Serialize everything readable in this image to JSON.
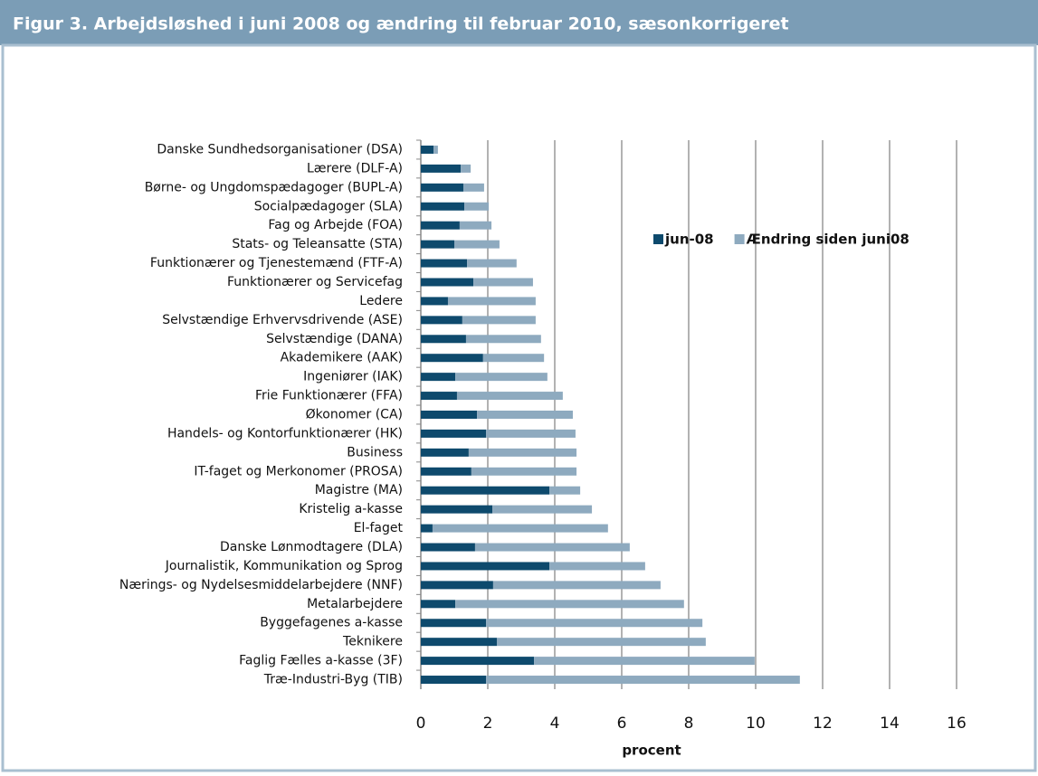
{
  "chart_data": {
    "type": "stacked-barh",
    "title": "Figur 3. Arbejdsløshed i juni 2008 og ændring til februar 2010, sæsonkorrigeret",
    "xlabel": "procent",
    "categories": [
      "Danske Sundhedsorganisationer (DSA)",
      "Lærere (DLF-A)",
      "Børne- og Ungdomspædagoger (BUPL-A)",
      "Socialpædagoger (SLA)",
      "Fag og Arbejde (FOA)",
      "Stats- og Teleansatte (STA)",
      "Funktionærer og Tjenestemænd (FTF-A)",
      "Funktionærer og Servicefag",
      "Ledere",
      "Selvstændige Erhvervsdrivende (ASE)",
      "Selvstændige (DANA)",
      "Akademikere (AAK)",
      "Ingeniører (IAK)",
      "Frie Funktionærer (FFA)",
      "Økonomer (CA)",
      "Handels- og Kontorfunktionærer (HK)",
      "Business",
      "IT-faget og Merkonomer (PROSA)",
      "Magistre (MA)",
      "Kristelig a-kasse",
      "El-faget",
      "Danske Lønmodtagere (DLA)",
      "Journalistik, Kommunikation og Sprog",
      "Nærings- og Nydelsesmiddelarbejdere (NNF)",
      "Metalarbejdere",
      "Byggefagenes a-kasse",
      "Teknikere",
      "Faglig Fælles a-kasse (3F)",
      "Træ-Industri-Byg (TIB)"
    ],
    "series": [
      {
        "name": "jun-08",
        "color": "#0e4a6d",
        "values": [
          0.38,
          1.19,
          1.27,
          1.3,
          1.16,
          1.0,
          1.38,
          1.57,
          0.81,
          1.24,
          1.35,
          1.86,
          1.03,
          1.08,
          1.68,
          1.95,
          1.43,
          1.51,
          3.84,
          2.14,
          0.35,
          1.62,
          3.84,
          2.16,
          1.03,
          1.95,
          2.27,
          3.38,
          1.95
        ]
      },
      {
        "name": "Ændring siden juni08",
        "color": "#8eaabf",
        "values": [
          0.13,
          0.3,
          0.62,
          0.73,
          0.95,
          1.35,
          1.48,
          1.78,
          2.62,
          2.19,
          2.24,
          1.82,
          2.75,
          3.16,
          2.86,
          2.67,
          3.22,
          3.14,
          0.92,
          2.97,
          5.24,
          4.62,
          2.86,
          5.0,
          6.83,
          6.46,
          6.24,
          6.59,
          9.37
        ]
      }
    ],
    "xlim": [
      0,
      16
    ],
    "xticks": [
      0,
      2,
      4,
      6,
      8,
      10,
      12,
      14,
      16
    ],
    "grid": true,
    "legend": "upper right"
  }
}
